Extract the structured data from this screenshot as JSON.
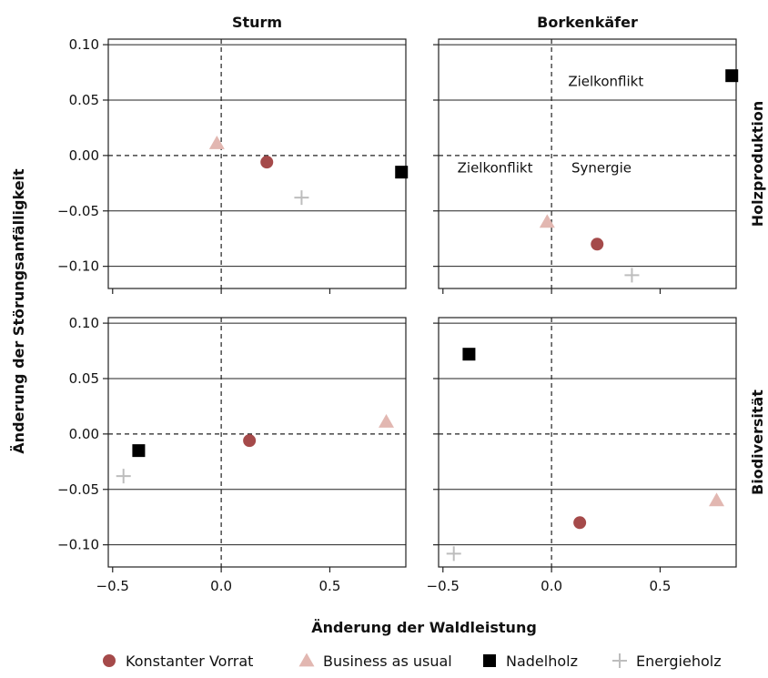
{
  "chart_data": {
    "type": "scatter",
    "xlabel": "Änderung der Waldleistung",
    "ylabel": "Änderung der Störungsanfälligkeit",
    "xlim": [
      -0.52,
      0.85
    ],
    "ylim": [
      -0.12,
      0.105
    ],
    "x_ticks": [
      -0.5,
      0.0,
      0.5
    ],
    "y_ticks": [
      0.1,
      0.05,
      0.0,
      -0.05,
      -0.1
    ],
    "x_tick_labels": [
      "−0.5",
      "0.0",
      "0.5"
    ],
    "y_tick_labels": [
      "0.10",
      "0.05",
      "0.00",
      "−0.05",
      "−0.10"
    ],
    "gridlines": "horizontal",
    "reference_lines": {
      "x": 0,
      "y": 0,
      "style": "dashed"
    },
    "legend_position": "bottom",
    "columns": [
      "Sturm",
      "Borkenkäfer"
    ],
    "rows": [
      "Holzproduktion",
      "Biodiversität"
    ],
    "series": [
      {
        "name": "Konstanter Vorrat",
        "marker": "circle",
        "color": "#a54a4a"
      },
      {
        "name": "Business as usual",
        "marker": "triangle",
        "color": "#e2b7b1"
      },
      {
        "name": "Nadelholz",
        "marker": "square",
        "color": "#000000"
      },
      {
        "name": "Energieholz",
        "marker": "plus",
        "color": "#bdbdbd"
      }
    ],
    "panels": [
      {
        "column": "Sturm",
        "row": "Holzproduktion",
        "points": [
          {
            "series": "Konstanter Vorrat",
            "x": 0.21,
            "y": -0.006
          },
          {
            "series": "Business as usual",
            "x": -0.02,
            "y": 0.011
          },
          {
            "series": "Nadelholz",
            "x": 0.83,
            "y": -0.015
          },
          {
            "series": "Energieholz",
            "x": 0.37,
            "y": -0.038
          }
        ],
        "annotations": []
      },
      {
        "column": "Borkenkäfer",
        "row": "Holzproduktion",
        "points": [
          {
            "series": "Konstanter Vorrat",
            "x": 0.21,
            "y": -0.08
          },
          {
            "series": "Business as usual",
            "x": -0.02,
            "y": -0.06
          },
          {
            "series": "Nadelholz",
            "x": 0.83,
            "y": 0.072
          },
          {
            "series": "Energieholz",
            "x": 0.37,
            "y": -0.108
          }
        ],
        "annotations": [
          {
            "text": "Zielkonflikt",
            "x": 0.25,
            "y": 0.067
          },
          {
            "text": "Zielkonflikt",
            "x": -0.26,
            "y": -0.011
          },
          {
            "text": "Synergie",
            "x": 0.23,
            "y": -0.011
          }
        ]
      },
      {
        "column": "Sturm",
        "row": "Biodiversität",
        "points": [
          {
            "series": "Konstanter Vorrat",
            "x": 0.13,
            "y": -0.006
          },
          {
            "series": "Business as usual",
            "x": 0.76,
            "y": 0.011
          },
          {
            "series": "Nadelholz",
            "x": -0.38,
            "y": -0.015
          },
          {
            "series": "Energieholz",
            "x": -0.45,
            "y": -0.038
          }
        ],
        "annotations": []
      },
      {
        "column": "Borkenkäfer",
        "row": "Biodiversität",
        "points": [
          {
            "series": "Konstanter Vorrat",
            "x": 0.13,
            "y": -0.08
          },
          {
            "series": "Business as usual",
            "x": 0.76,
            "y": -0.06
          },
          {
            "series": "Nadelholz",
            "x": -0.38,
            "y": 0.072
          },
          {
            "series": "Energieholz",
            "x": -0.45,
            "y": -0.108
          }
        ],
        "annotations": []
      }
    ]
  }
}
